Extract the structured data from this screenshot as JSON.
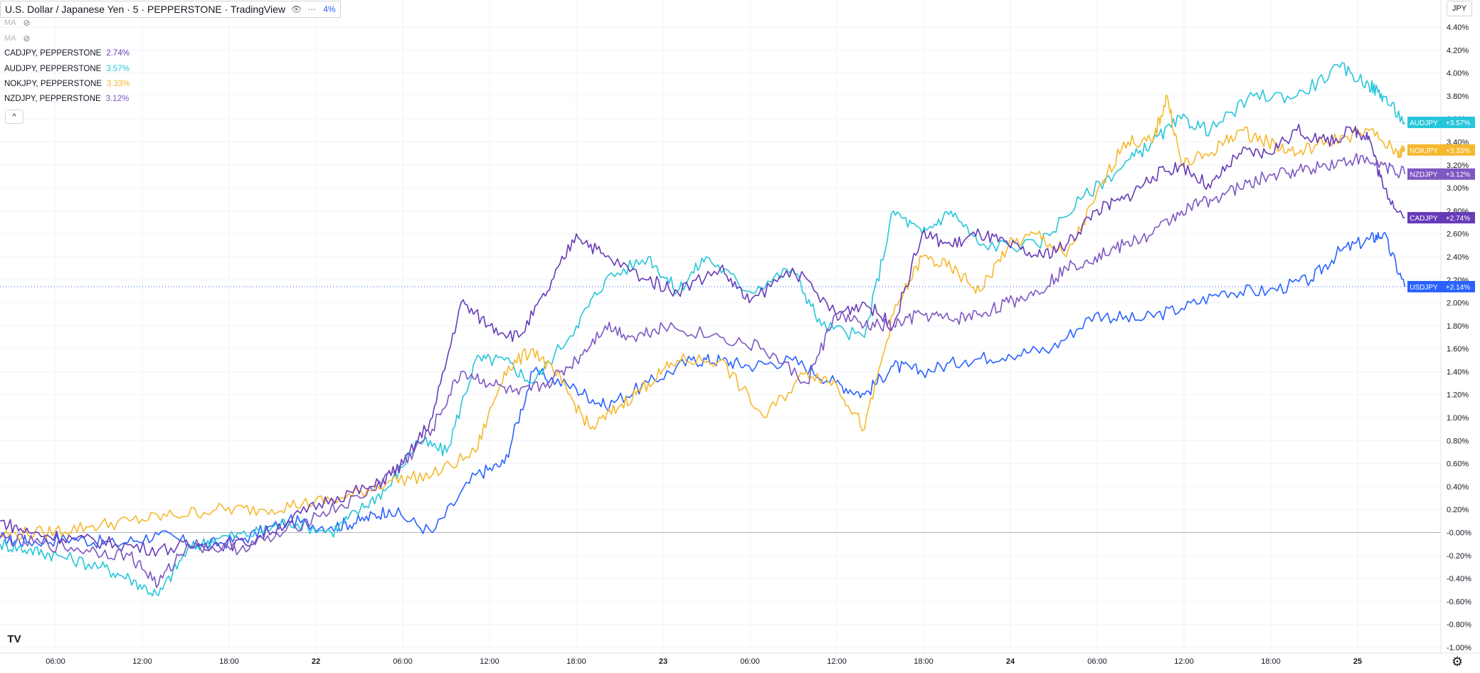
{
  "header": {
    "title": "U.S. Dollar / Japanese Yen · 5 · PEPPERSTONE · TradingView",
    "main_change": "4%",
    "eye_icon": "eye-icon",
    "more_icon": "more-icon"
  },
  "indicators": [
    {
      "label": "MA",
      "icon": "eye-off-icon"
    },
    {
      "label": "MA",
      "icon": "eye-off-icon"
    }
  ],
  "legend": [
    {
      "symbol": "CADJPY, PEPPERSTONE",
      "value": "2.74%",
      "color": "#673ab7"
    },
    {
      "symbol": "AUDJPY, PEPPERSTONE",
      "value": "3.57%",
      "color": "#26c6da"
    },
    {
      "symbol": "NOKJPY, PEPPERSTONE",
      "value": "3.33%",
      "color": "#f5b82e"
    },
    {
      "symbol": "NZDJPY, PEPPERSTONE",
      "value": "3.12%",
      "color": "#7e57c2"
    }
  ],
  "currency_button": "JPY",
  "collapse_glyph": "^",
  "logo": "TV",
  "chart_data": {
    "type": "line",
    "y_unit": "%",
    "ylim": [
      -1.0,
      4.4
    ],
    "y_ticks": [
      "4.40%",
      "4.20%",
      "4.00%",
      "3.80%",
      "3.60%",
      "3.40%",
      "3.20%",
      "3.00%",
      "2.80%",
      "2.60%",
      "2.40%",
      "2.20%",
      "2.00%",
      "1.80%",
      "1.60%",
      "1.40%",
      "1.20%",
      "1.00%",
      "0.80%",
      "0.60%",
      "0.40%",
      "0.20%",
      "-0.00%",
      "-0.20%",
      "-0.40%",
      "-0.60%",
      "-0.80%",
      "-1.00%"
    ],
    "x_ticks": [
      "06:00",
      "12:00",
      "18:00",
      "22",
      "06:00",
      "12:00",
      "18:00",
      "23",
      "06:00",
      "12:00",
      "18:00",
      "24",
      "06:00",
      "12:00",
      "18:00",
      "25"
    ],
    "grid": true,
    "zero_line": true,
    "series": [
      {
        "name": "USDJPY",
        "label": "USDJPY",
        "value_label": "+2.14%",
        "color": "#2962ff",
        "x": [
          0,
          0.02,
          0.05,
          0.08,
          0.11,
          0.14,
          0.17,
          0.2,
          0.23,
          0.25,
          0.27,
          0.3,
          0.33,
          0.35,
          0.37,
          0.4,
          0.42,
          0.45,
          0.48,
          0.5,
          0.52,
          0.55,
          0.58,
          0.6,
          0.62,
          0.64,
          0.67,
          0.7,
          0.73,
          0.76,
          0.79,
          0.82,
          0.85,
          0.88,
          0.91,
          0.93,
          0.95,
          0.96,
          0.975
        ],
        "y": [
          -0.05,
          -0.08,
          -0.05,
          -0.1,
          -0.02,
          -0.12,
          -0.05,
          0.1,
          0.05,
          0.1,
          0.2,
          0.0,
          0.5,
          0.6,
          1.4,
          1.25,
          1.1,
          1.3,
          1.5,
          1.5,
          1.45,
          1.5,
          1.3,
          1.2,
          1.45,
          1.4,
          1.5,
          1.55,
          1.6,
          1.9,
          1.85,
          1.95,
          2.1,
          2.1,
          2.2,
          2.45,
          2.55,
          2.6,
          2.14
        ]
      },
      {
        "name": "AUDJPY",
        "label": "AUDJPY",
        "value_label": "+3.57%",
        "color": "#26c6da",
        "x": [
          0,
          0.02,
          0.04,
          0.07,
          0.09,
          0.11,
          0.13,
          0.15,
          0.18,
          0.2,
          0.23,
          0.25,
          0.27,
          0.29,
          0.31,
          0.33,
          0.35,
          0.37,
          0.4,
          0.42,
          0.45,
          0.47,
          0.49,
          0.52,
          0.55,
          0.57,
          0.6,
          0.62,
          0.64,
          0.66,
          0.68,
          0.72,
          0.75,
          0.78,
          0.8,
          0.82,
          0.84,
          0.87,
          0.9,
          0.93,
          0.95,
          0.96,
          0.975
        ],
        "y": [
          -0.1,
          -0.15,
          -0.2,
          -0.3,
          -0.4,
          -0.55,
          -0.15,
          -0.05,
          0.0,
          0.1,
          0.0,
          0.2,
          0.4,
          0.8,
          0.7,
          1.5,
          1.5,
          1.3,
          1.8,
          2.2,
          2.4,
          2.1,
          2.4,
          2.1,
          2.3,
          1.8,
          1.7,
          2.8,
          2.6,
          2.8,
          2.5,
          2.5,
          2.9,
          3.2,
          3.4,
          3.6,
          3.5,
          3.8,
          3.8,
          4.05,
          3.9,
          3.8,
          3.57
        ]
      },
      {
        "name": "NOKJPY",
        "label": "NOKJPY",
        "value_label": "+3.33%",
        "color": "#f5b82e",
        "x": [
          0,
          0.03,
          0.06,
          0.09,
          0.12,
          0.15,
          0.18,
          0.21,
          0.24,
          0.27,
          0.3,
          0.33,
          0.35,
          0.37,
          0.39,
          0.41,
          0.43,
          0.45,
          0.47,
          0.5,
          0.53,
          0.56,
          0.58,
          0.6,
          0.62,
          0.64,
          0.66,
          0.68,
          0.7,
          0.72,
          0.74,
          0.76,
          0.78,
          0.8,
          0.81,
          0.82,
          0.84,
          0.86,
          0.88,
          0.9,
          0.92,
          0.95,
          0.97,
          0.975
        ],
        "y": [
          -0.02,
          0.0,
          0.05,
          0.1,
          0.15,
          0.2,
          0.2,
          0.25,
          0.3,
          0.45,
          0.5,
          0.7,
          1.4,
          1.6,
          1.3,
          0.9,
          1.1,
          1.3,
          1.5,
          1.5,
          1.0,
          1.4,
          1.3,
          0.9,
          1.9,
          2.4,
          2.3,
          2.1,
          2.5,
          2.6,
          2.4,
          2.9,
          3.4,
          3.4,
          3.8,
          3.2,
          3.3,
          3.5,
          3.4,
          3.3,
          3.4,
          3.5,
          3.3,
          3.33
        ]
      },
      {
        "name": "CADJPY",
        "label": "CADJPY",
        "value_label": "+2.74%",
        "color": "#673ab7",
        "x": [
          0,
          0.02,
          0.05,
          0.08,
          0.11,
          0.14,
          0.17,
          0.2,
          0.23,
          0.26,
          0.28,
          0.3,
          0.32,
          0.34,
          0.36,
          0.38,
          0.4,
          0.42,
          0.45,
          0.47,
          0.5,
          0.52,
          0.55,
          0.58,
          0.6,
          0.62,
          0.64,
          0.66,
          0.68,
          0.7,
          0.72,
          0.74,
          0.76,
          0.78,
          0.8,
          0.82,
          0.84,
          0.86,
          0.88,
          0.9,
          0.92,
          0.94,
          0.95,
          0.96,
          0.975
        ],
        "y": [
          0.1,
          0.0,
          -0.05,
          -0.1,
          -0.15,
          -0.1,
          -0.1,
          0.1,
          0.3,
          0.4,
          0.6,
          1.0,
          2.0,
          1.8,
          1.7,
          2.1,
          2.6,
          2.4,
          2.2,
          2.1,
          2.3,
          2.0,
          2.3,
          1.9,
          2.0,
          1.8,
          2.6,
          2.5,
          2.6,
          2.5,
          2.4,
          2.5,
          2.8,
          2.9,
          3.1,
          3.2,
          3.0,
          3.3,
          3.3,
          3.5,
          3.4,
          3.5,
          3.45,
          3.0,
          2.74
        ]
      },
      {
        "name": "NZDJPY",
        "label": "NZDJPY",
        "value_label": "+3.12%",
        "color": "#7e57c2",
        "x": [
          0,
          0.03,
          0.06,
          0.09,
          0.11,
          0.13,
          0.16,
          0.19,
          0.22,
          0.25,
          0.28,
          0.3,
          0.32,
          0.34,
          0.36,
          0.38,
          0.4,
          0.42,
          0.44,
          0.46,
          0.5,
          0.53,
          0.56,
          0.58,
          0.6,
          0.62,
          0.64,
          0.66,
          0.68,
          0.7,
          0.72,
          0.74,
          0.76,
          0.78,
          0.8,
          0.82,
          0.84,
          0.86,
          0.88,
          0.9,
          0.92,
          0.94,
          0.96,
          0.975
        ],
        "y": [
          -0.05,
          -0.1,
          -0.15,
          -0.2,
          -0.45,
          -0.1,
          -0.15,
          -0.05,
          0.15,
          0.3,
          0.6,
          0.9,
          1.4,
          1.3,
          1.2,
          1.3,
          1.5,
          1.8,
          1.7,
          1.8,
          1.7,
          1.6,
          1.3,
          1.9,
          1.8,
          1.8,
          1.9,
          1.85,
          1.9,
          2.0,
          2.1,
          2.3,
          2.4,
          2.5,
          2.6,
          2.8,
          2.9,
          3.0,
          3.1,
          3.15,
          3.2,
          3.25,
          3.2,
          3.12
        ]
      }
    ]
  }
}
